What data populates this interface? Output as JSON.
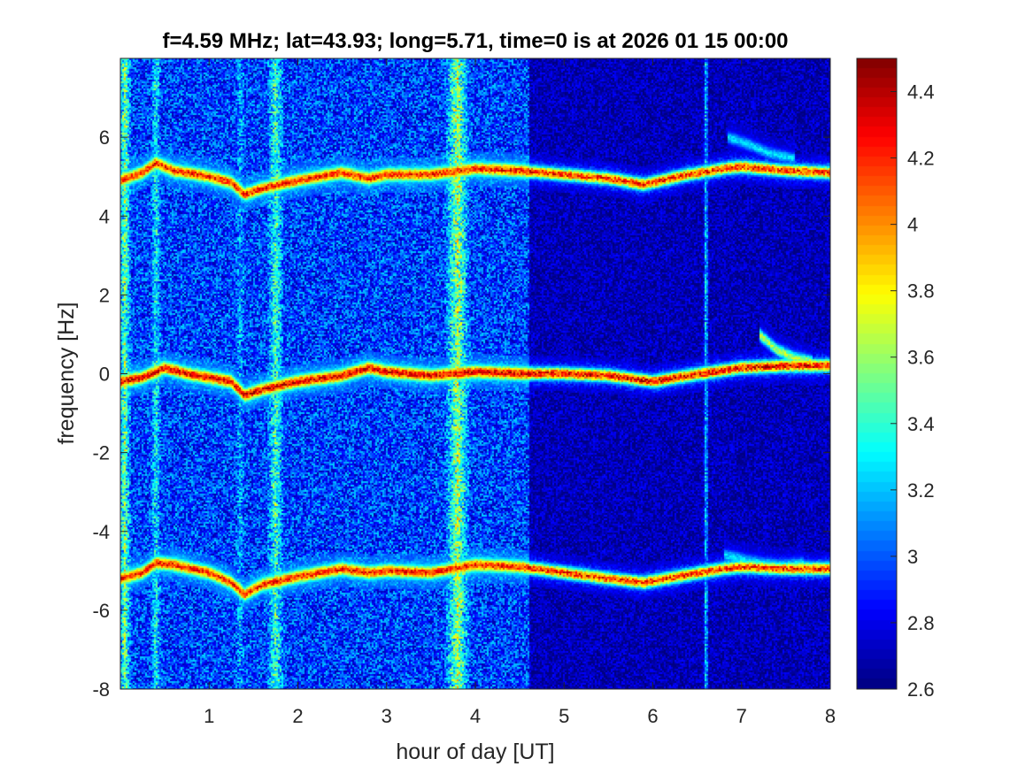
{
  "chart_data": {
    "type": "heatmap",
    "title": "f=4.59 MHz;  lat=43.93; long=5.71, time=0 is at 2026 01 15 00:00",
    "xlabel": "hour of day [UT]",
    "ylabel": "frequency [Hz]",
    "xlim": [
      0,
      8
    ],
    "ylim": [
      -8,
      8
    ],
    "xticks": [
      1,
      2,
      3,
      4,
      5,
      6,
      7,
      8
    ],
    "xtick_labels": [
      "1",
      "2",
      "3",
      "4",
      "5",
      "6",
      "7",
      "8"
    ],
    "yticks": [
      -8,
      -6,
      -4,
      -2,
      0,
      2,
      4,
      6
    ],
    "ytick_labels": [
      "-8",
      "-6",
      "-4",
      "-2",
      "0",
      "2",
      "4",
      "6"
    ],
    "colorbar": {
      "colormap": "jet",
      "clim": [
        2.6,
        4.5
      ],
      "ticks": [
        2.6,
        2.8,
        3.0,
        3.2,
        3.4,
        3.6,
        3.8,
        4.0,
        4.2,
        4.4
      ],
      "tick_labels": [
        "2.6",
        "2.8",
        "3",
        "3.2",
        "3.4",
        "3.6",
        "3.8",
        "4",
        "4.2",
        "4.4"
      ]
    },
    "grid": false,
    "background_level": 2.95,
    "late_background_level": 2.7,
    "quiet_after_hour": 4.6,
    "noise_amplitude": 0.28,
    "traces": [
      {
        "points": [
          [
            0,
            -0.2
          ],
          [
            0.25,
            -0.1
          ],
          [
            0.5,
            0.15
          ],
          [
            0.75,
            0.0
          ],
          [
            1.0,
            -0.1
          ],
          [
            1.25,
            -0.2
          ],
          [
            1.4,
            -0.55
          ],
          [
            1.6,
            -0.4
          ],
          [
            2.0,
            -0.2
          ],
          [
            2.5,
            -0.05
          ],
          [
            2.8,
            0.15
          ],
          [
            3.0,
            0.05
          ],
          [
            3.5,
            -0.05
          ],
          [
            4.0,
            0.05
          ],
          [
            4.5,
            0.0
          ],
          [
            5.0,
            0.0
          ],
          [
            5.5,
            -0.05
          ],
          [
            6.0,
            -0.2
          ],
          [
            6.4,
            -0.05
          ],
          [
            6.7,
            0.05
          ],
          [
            7.0,
            0.15
          ],
          [
            7.5,
            0.2
          ],
          [
            8.0,
            0.2
          ]
        ],
        "level": 4.4
      },
      {
        "points": [
          [
            0,
            4.9
          ],
          [
            0.25,
            5.1
          ],
          [
            0.4,
            5.35
          ],
          [
            0.6,
            5.15
          ],
          [
            1.0,
            5.0
          ],
          [
            1.25,
            4.85
          ],
          [
            1.4,
            4.55
          ],
          [
            1.6,
            4.7
          ],
          [
            2.0,
            4.9
          ],
          [
            2.5,
            5.1
          ],
          [
            2.8,
            4.95
          ],
          [
            3.0,
            5.05
          ],
          [
            3.5,
            5.05
          ],
          [
            4.0,
            5.2
          ],
          [
            4.5,
            5.15
          ],
          [
            5.0,
            5.05
          ],
          [
            5.5,
            4.95
          ],
          [
            5.9,
            4.8
          ],
          [
            6.4,
            5.05
          ],
          [
            6.8,
            5.2
          ],
          [
            7.0,
            5.25
          ],
          [
            7.5,
            5.15
          ],
          [
            8.0,
            5.1
          ]
        ],
        "level": 4.3
      },
      {
        "points": [
          [
            0,
            -5.2
          ],
          [
            0.25,
            -5.05
          ],
          [
            0.4,
            -4.8
          ],
          [
            0.6,
            -4.85
          ],
          [
            1.0,
            -5.05
          ],
          [
            1.25,
            -5.3
          ],
          [
            1.4,
            -5.6
          ],
          [
            1.6,
            -5.35
          ],
          [
            2.0,
            -5.15
          ],
          [
            2.5,
            -4.95
          ],
          [
            2.8,
            -5.05
          ],
          [
            3.0,
            -5.0
          ],
          [
            3.5,
            -5.05
          ],
          [
            4.0,
            -4.85
          ],
          [
            4.5,
            -4.9
          ],
          [
            5.0,
            -5.05
          ],
          [
            5.5,
            -5.2
          ],
          [
            5.9,
            -5.3
          ],
          [
            6.4,
            -5.1
          ],
          [
            6.8,
            -4.95
          ],
          [
            7.0,
            -4.9
          ],
          [
            7.5,
            -4.95
          ],
          [
            8.0,
            -4.95
          ]
        ],
        "level": 4.3
      },
      {
        "points": [
          [
            7.2,
            1.0
          ],
          [
            7.4,
            0.6
          ],
          [
            7.6,
            0.4
          ],
          [
            7.8,
            0.3
          ]
        ],
        "level": 3.7
      },
      {
        "points": [
          [
            6.85,
            6.0
          ],
          [
            7.1,
            5.8
          ],
          [
            7.3,
            5.6
          ],
          [
            7.6,
            5.45
          ]
        ],
        "level": 3.3
      },
      {
        "points": [
          [
            6.8,
            -4.6
          ],
          [
            7.1,
            -4.75
          ],
          [
            7.4,
            -4.85
          ],
          [
            7.7,
            -4.8
          ]
        ],
        "level": 3.3
      }
    ],
    "vertical_bands": [
      {
        "x": 0.05,
        "width": 0.08,
        "level": 3.6
      },
      {
        "x": 0.4,
        "width": 0.06,
        "level": 3.4
      },
      {
        "x": 1.35,
        "width": 0.05,
        "level": 3.2
      },
      {
        "x": 1.75,
        "width": 0.1,
        "level": 3.5
      },
      {
        "x": 3.8,
        "width": 0.15,
        "level": 3.7
      },
      {
        "x": 6.6,
        "width": 0.03,
        "level": 3.4
      }
    ]
  }
}
